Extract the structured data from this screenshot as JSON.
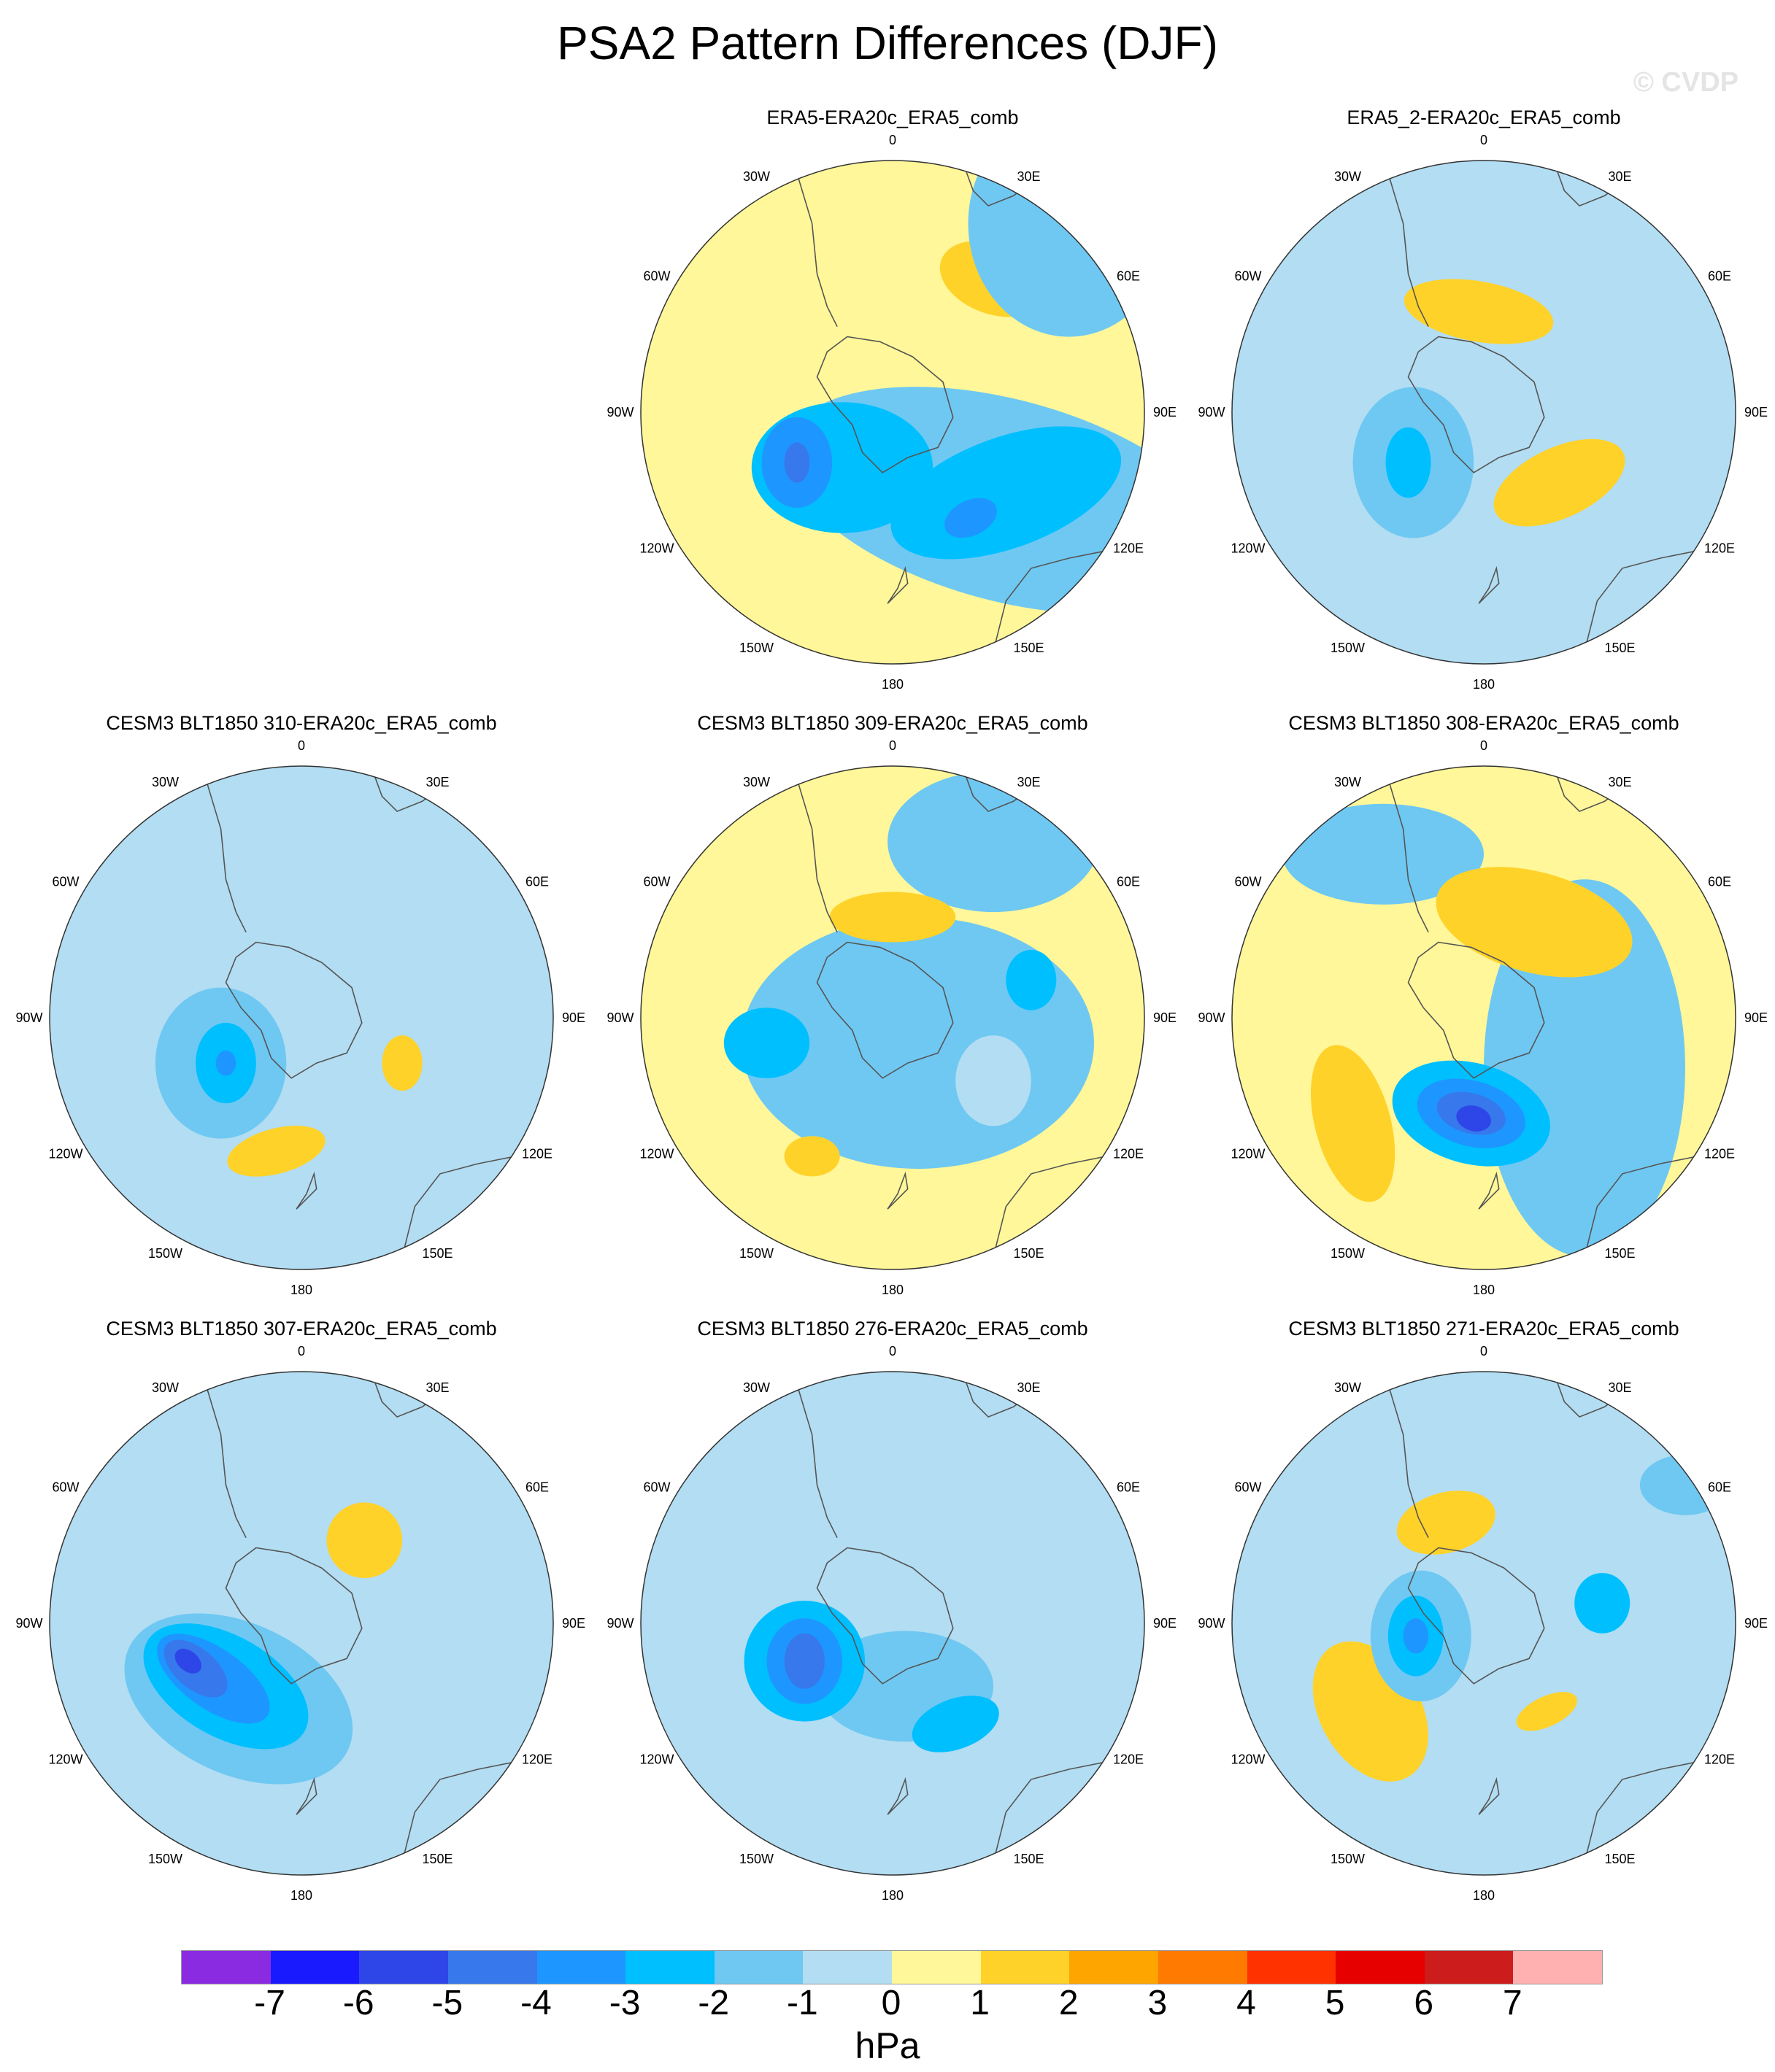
{
  "title": "PSA2 Pattern Differences (DJF)",
  "watermark": "© CVDP",
  "lon_labels": [
    "0",
    "30E",
    "60E",
    "90E",
    "120E",
    "150E",
    "180",
    "150W",
    "120W",
    "90W",
    "60W",
    "30W"
  ],
  "panels": [
    {
      "title": "ERA5-ERA20c_ERA5_comb",
      "base": "#fff799",
      "blobs": [
        {
          "level": 2,
          "dx": 0.4,
          "dy": -0.53,
          "rx": 0.22,
          "ry": 0.14,
          "rot": 20,
          "inner": []
        },
        {
          "level": -1,
          "dx": 0.45,
          "dy": 0.35,
          "rx": 0.9,
          "ry": 0.4,
          "rot": 15,
          "inner": []
        },
        {
          "level": -1,
          "dx": 0.7,
          "dy": -0.75,
          "rx": 0.4,
          "ry": 0.45,
          "rot": 0,
          "inner": []
        },
        {
          "level": -2,
          "dx": -0.2,
          "dy": 0.22,
          "rx": 0.36,
          "ry": 0.26,
          "rot": 0,
          "inner": []
        },
        {
          "level": -2,
          "dx": 0.45,
          "dy": 0.32,
          "rx": 0.48,
          "ry": 0.22,
          "rot": -20,
          "inner": []
        },
        {
          "level": -3,
          "dx": -0.38,
          "dy": 0.2,
          "rx": 0.14,
          "ry": 0.18,
          "rot": 0,
          "inner": []
        },
        {
          "level": -3,
          "dx": 0.31,
          "dy": 0.42,
          "rx": 0.11,
          "ry": 0.07,
          "rot": -25,
          "inner": []
        },
        {
          "level": -4,
          "dx": -0.38,
          "dy": 0.2,
          "rx": 0.05,
          "ry": 0.08,
          "rot": 0,
          "inner": []
        }
      ]
    },
    {
      "title": "ERA5_2-ERA20c_ERA5_comb",
      "base": "#b2ddf2",
      "blobs": [
        {
          "level": 0,
          "dx": -0.35,
          "dy": -0.05,
          "rx": 0.7,
          "ry": 0.85,
          "rot": 0,
          "inner": []
        },
        {
          "level": 2,
          "dx": -0.02,
          "dy": -0.4,
          "rx": 0.3,
          "ry": 0.12,
          "rot": 10,
          "inner": []
        },
        {
          "level": 2,
          "dx": 0.3,
          "dy": 0.28,
          "rx": 0.28,
          "ry": 0.14,
          "rot": -25,
          "inner": []
        },
        {
          "level": -1,
          "dx": -0.28,
          "dy": 0.2,
          "rx": 0.24,
          "ry": 0.3,
          "rot": 0,
          "inner": []
        },
        {
          "level": -2,
          "dx": -0.3,
          "dy": 0.2,
          "rx": 0.09,
          "ry": 0.14,
          "rot": 0,
          "inner": []
        }
      ]
    },
    {
      "title": "CESM3 BLT1850 310-ERA20c_ERA5_comb",
      "base": "#b2ddf2",
      "blobs": [
        {
          "level": 0,
          "dx": -0.45,
          "dy": 0.35,
          "rx": 0.6,
          "ry": 0.62,
          "rot": 0,
          "inner": []
        },
        {
          "level": 0,
          "dx": 0.05,
          "dy": -0.12,
          "rx": 0.38,
          "ry": 0.4,
          "rot": 0,
          "inner": []
        },
        {
          "level": -1,
          "dx": -0.32,
          "dy": 0.18,
          "rx": 0.26,
          "ry": 0.3,
          "rot": 0,
          "inner": []
        },
        {
          "level": -2,
          "dx": -0.3,
          "dy": 0.18,
          "rx": 0.12,
          "ry": 0.16,
          "rot": 0,
          "inner": []
        },
        {
          "level": -3,
          "dx": -0.3,
          "dy": 0.18,
          "rx": 0.04,
          "ry": 0.05,
          "rot": 0,
          "inner": []
        },
        {
          "level": 2,
          "dx": -0.1,
          "dy": 0.53,
          "rx": 0.2,
          "ry": 0.09,
          "rot": -15,
          "inner": []
        },
        {
          "level": 2,
          "dx": 0.4,
          "dy": 0.18,
          "rx": 0.08,
          "ry": 0.11,
          "rot": 0,
          "inner": []
        }
      ]
    },
    {
      "title": "CESM3 BLT1850 309-ERA20c_ERA5_comb",
      "base": "#fff799",
      "blobs": [
        {
          "level": -1,
          "dx": 0.1,
          "dy": 0.1,
          "rx": 0.7,
          "ry": 0.5,
          "rot": 0,
          "inner": []
        },
        {
          "level": -1,
          "dx": 0.4,
          "dy": -0.7,
          "rx": 0.42,
          "ry": 0.28,
          "rot": 0,
          "inner": []
        },
        {
          "level": 0,
          "dx": 0.4,
          "dy": 0.25,
          "rx": 0.15,
          "ry": 0.18,
          "rot": 0,
          "inner": []
        },
        {
          "level": 2,
          "dx": 0.0,
          "dy": -0.4,
          "rx": 0.25,
          "ry": 0.1,
          "rot": 0,
          "inner": []
        },
        {
          "level": -2,
          "dx": -0.5,
          "dy": 0.1,
          "rx": 0.17,
          "ry": 0.14,
          "rot": 0,
          "inner": []
        },
        {
          "level": -2,
          "dx": 0.55,
          "dy": -0.15,
          "rx": 0.1,
          "ry": 0.12,
          "rot": 0,
          "inner": []
        },
        {
          "level": 2,
          "dx": -0.32,
          "dy": 0.55,
          "rx": 0.11,
          "ry": 0.08,
          "rot": 0,
          "inner": []
        }
      ]
    },
    {
      "title": "CESM3 BLT1850 308-ERA20c_ERA5_comb",
      "base": "#fff799",
      "blobs": [
        {
          "level": -1,
          "dx": 0.4,
          "dy": 0.2,
          "rx": 0.4,
          "ry": 0.75,
          "rot": 0,
          "inner": []
        },
        {
          "level": -1,
          "dx": -0.4,
          "dy": -0.65,
          "rx": 0.4,
          "ry": 0.2,
          "rot": 0,
          "inner": []
        },
        {
          "level": 2,
          "dx": 0.2,
          "dy": -0.38,
          "rx": 0.4,
          "ry": 0.2,
          "rot": 15,
          "inner": []
        },
        {
          "level": 2,
          "dx": -0.52,
          "dy": 0.42,
          "rx": 0.15,
          "ry": 0.32,
          "rot": -15,
          "inner": []
        },
        {
          "level": -2,
          "dx": -0.05,
          "dy": 0.38,
          "rx": 0.32,
          "ry": 0.2,
          "rot": 15,
          "inner": []
        },
        {
          "level": -3,
          "dx": -0.05,
          "dy": 0.38,
          "rx": 0.22,
          "ry": 0.13,
          "rot": 15,
          "inner": []
        },
        {
          "level": -4,
          "dx": -0.05,
          "dy": 0.38,
          "rx": 0.14,
          "ry": 0.08,
          "rot": 15,
          "inner": []
        },
        {
          "level": -5,
          "dx": -0.04,
          "dy": 0.4,
          "rx": 0.07,
          "ry": 0.05,
          "rot": 15,
          "inner": []
        }
      ]
    },
    {
      "title": "CESM3 BLT1850 307-ERA20c_ERA5_comb",
      "base": "#b2ddf2",
      "blobs": [
        {
          "level": 0,
          "dx": -0.35,
          "dy": 0.0,
          "rx": 0.65,
          "ry": 0.8,
          "rot": 0,
          "inner": []
        },
        {
          "level": 2,
          "dx": 0.25,
          "dy": -0.33,
          "rx": 0.15,
          "ry": 0.15,
          "rot": 0,
          "inner": []
        },
        {
          "level": -1,
          "dx": -0.25,
          "dy": 0.3,
          "rx": 0.48,
          "ry": 0.3,
          "rot": 25,
          "inner": []
        },
        {
          "level": -2,
          "dx": -0.3,
          "dy": 0.25,
          "rx": 0.36,
          "ry": 0.2,
          "rot": 30,
          "inner": []
        },
        {
          "level": -3,
          "dx": -0.35,
          "dy": 0.22,
          "rx": 0.26,
          "ry": 0.12,
          "rot": 35,
          "inner": []
        },
        {
          "level": -4,
          "dx": -0.42,
          "dy": 0.18,
          "rx": 0.15,
          "ry": 0.08,
          "rot": 40,
          "inner": []
        },
        {
          "level": -5,
          "dx": -0.45,
          "dy": 0.15,
          "rx": 0.06,
          "ry": 0.04,
          "rot": 40,
          "inner": []
        }
      ]
    },
    {
      "title": "CESM3 BLT1850 276-ERA20c_ERA5_comb",
      "base": "#b2ddf2",
      "blobs": [
        {
          "level": 0,
          "dx": -0.1,
          "dy": -0.1,
          "rx": 0.75,
          "ry": 0.65,
          "rot": 0,
          "inner": []
        },
        {
          "level": 0,
          "dx": 0.4,
          "dy": 0.55,
          "rx": 0.45,
          "ry": 0.2,
          "rot": 0,
          "inner": []
        },
        {
          "level": -1,
          "dx": 0.05,
          "dy": 0.25,
          "rx": 0.35,
          "ry": 0.22,
          "rot": 0,
          "inner": []
        },
        {
          "level": -2,
          "dx": -0.35,
          "dy": 0.15,
          "rx": 0.24,
          "ry": 0.24,
          "rot": 0,
          "inner": []
        },
        {
          "level": -3,
          "dx": -0.35,
          "dy": 0.15,
          "rx": 0.15,
          "ry": 0.17,
          "rot": 0,
          "inner": []
        },
        {
          "level": -4,
          "dx": -0.35,
          "dy": 0.15,
          "rx": 0.08,
          "ry": 0.11,
          "rot": 0,
          "inner": []
        },
        {
          "level": -2,
          "dx": 0.25,
          "dy": 0.4,
          "rx": 0.18,
          "ry": 0.1,
          "rot": -20,
          "inner": []
        }
      ]
    },
    {
      "title": "CESM3 BLT1850 271-ERA20c_ERA5_comb",
      "base": "#b2ddf2",
      "blobs": [
        {
          "level": 0,
          "dx": -0.1,
          "dy": 0.05,
          "rx": 0.7,
          "ry": 0.65,
          "rot": 0,
          "inner": []
        },
        {
          "level": 2,
          "dx": -0.15,
          "dy": -0.4,
          "rx": 0.2,
          "ry": 0.12,
          "rot": -15,
          "inner": []
        },
        {
          "level": 2,
          "dx": -0.45,
          "dy": 0.35,
          "rx": 0.2,
          "ry": 0.3,
          "rot": -30,
          "inner": []
        },
        {
          "level": 2,
          "dx": 0.25,
          "dy": 0.35,
          "rx": 0.13,
          "ry": 0.06,
          "rot": -25,
          "inner": []
        },
        {
          "level": -1,
          "dx": -0.25,
          "dy": 0.05,
          "rx": 0.2,
          "ry": 0.26,
          "rot": 0,
          "inner": []
        },
        {
          "level": -2,
          "dx": -0.27,
          "dy": 0.05,
          "rx": 0.11,
          "ry": 0.16,
          "rot": 0,
          "inner": []
        },
        {
          "level": -3,
          "dx": -0.27,
          "dy": 0.05,
          "rx": 0.05,
          "ry": 0.07,
          "rot": 0,
          "inner": []
        },
        {
          "level": -2,
          "dx": 0.47,
          "dy": -0.08,
          "rx": 0.11,
          "ry": 0.12,
          "rot": 0,
          "inner": []
        },
        {
          "level": -1,
          "dx": 0.8,
          "dy": -0.55,
          "rx": 0.18,
          "ry": 0.12,
          "rot": 0,
          "inner": []
        }
      ]
    }
  ],
  "colorbar": {
    "colors": [
      "#8a2be2",
      "#1a1aff",
      "#2e46e8",
      "#3778ec",
      "#1e96ff",
      "#00bfff",
      "#6fc8f2",
      "#b2ddf2",
      "#fff799",
      "#ffd22a",
      "#ffa500",
      "#ff7a00",
      "#ff3200",
      "#e60000",
      "#cc1c1c",
      "#ffb0b0"
    ],
    "labels": [
      "-7",
      "-6",
      "-5",
      "-4",
      "-3",
      "-2",
      "-1",
      "0",
      "1",
      "2",
      "3",
      "4",
      "5",
      "6",
      "7"
    ],
    "unit": "hPa"
  }
}
